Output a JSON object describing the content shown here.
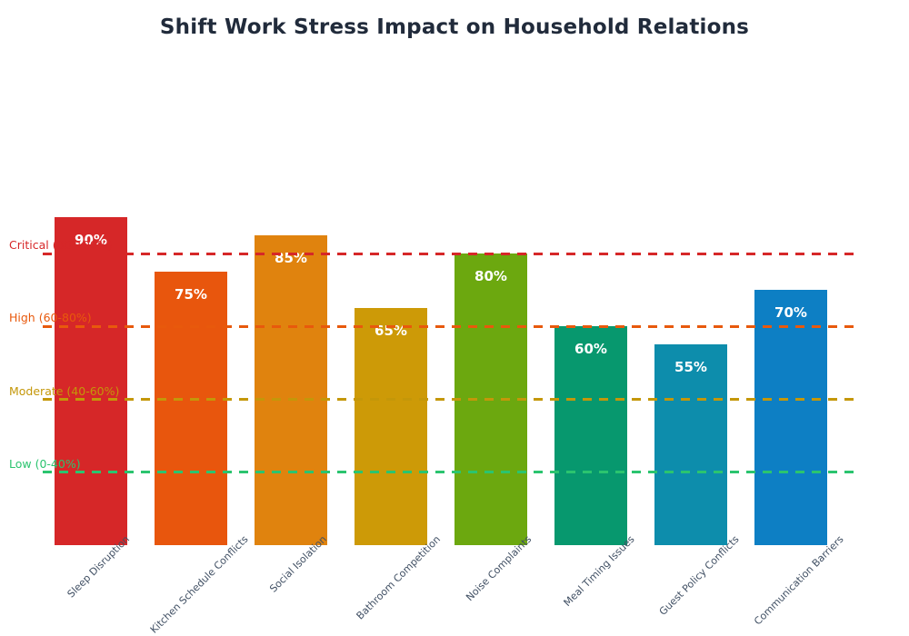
{
  "title": "Shift Work Stress Impact on Household Relations",
  "chart_data": {
    "type": "bar",
    "title": "Shift Work Stress Impact on Household Relations",
    "categories": [
      "Sleep Disruption",
      "Kitchen Schedule Conflicts",
      "Social Isolation",
      "Bathroom Competition",
      "Noise Complaints",
      "Meal Timing Issues",
      "Guest Policy Conflicts",
      "Communication Barriers"
    ],
    "values": [
      90,
      75,
      85,
      65,
      80,
      60,
      55,
      70
    ],
    "value_labels": [
      "90%",
      "75%",
      "85%",
      "65%",
      "80%",
      "60%",
      "55%",
      "70%"
    ],
    "bar_colors": [
      "#d62728",
      "#e8560d",
      "#e0830e",
      "#cd9a07",
      "#6ca80f",
      "#07986e",
      "#0d8dac",
      "#0d7fc4"
    ],
    "unit": "%",
    "ylim": [
      0,
      135
    ],
    "grid": false,
    "legend": "none",
    "xlabel": "",
    "ylabel": "",
    "threshold_lines": [
      {
        "id": "critical",
        "label": "Critical (80-100%)",
        "line_value": 80,
        "color": "#d62728"
      },
      {
        "id": "high",
        "label": "High (60-80%)",
        "line_value": 60,
        "color": "#e8590c"
      },
      {
        "id": "moderate",
        "label": "Moderate (40-60%)",
        "line_value": 40,
        "color": "#c49709"
      },
      {
        "id": "low",
        "label": "Low (0-40%)",
        "line_value": 20,
        "color": "#2bc46f"
      }
    ]
  }
}
